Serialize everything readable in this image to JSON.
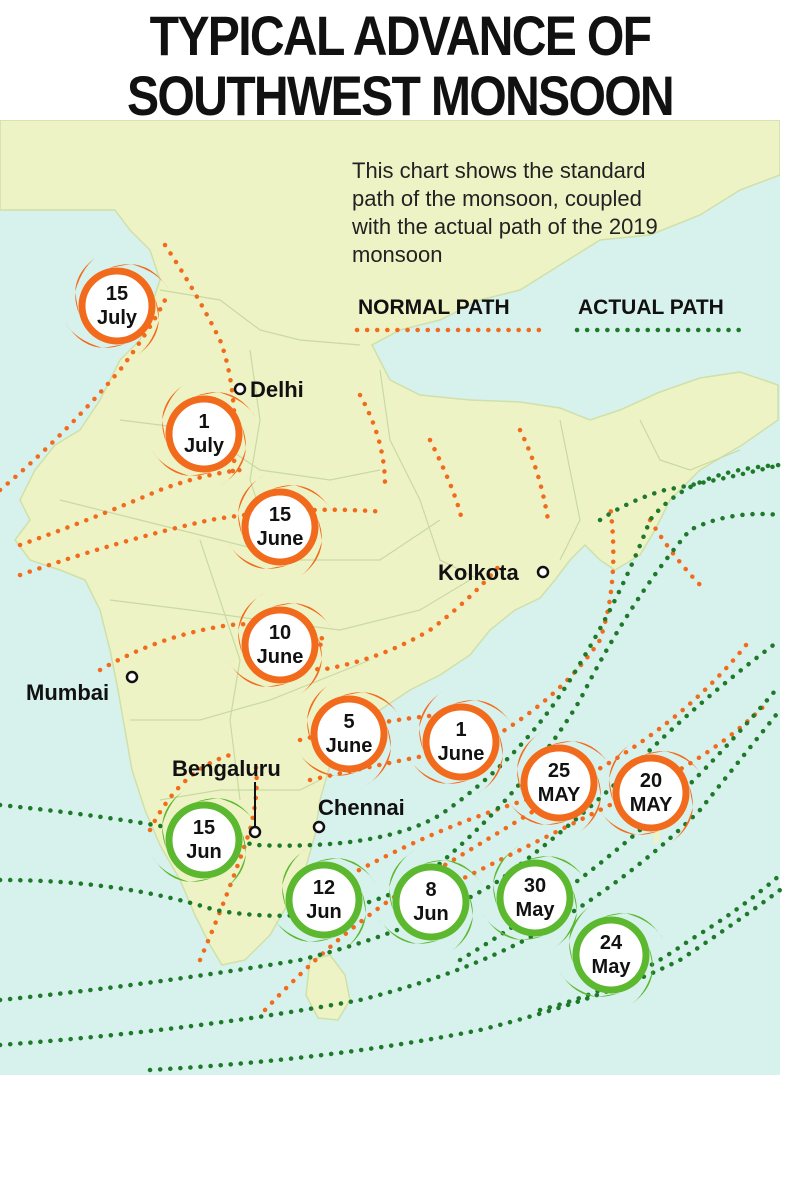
{
  "title": {
    "line1": "TYPICAL ADVANCE OF",
    "line2": "SOUTHWEST MONSOON"
  },
  "description": {
    "line1": "This chart shows the standard",
    "line2": "path of the monsoon, coupled",
    "line3": "with the actual path of the 2019",
    "line4": "monsoon"
  },
  "legend": {
    "normal": {
      "label": "NORMAL PATH",
      "color": "#f26b1d"
    },
    "actual": {
      "label": "ACTUAL PATH",
      "color": "#1e7a2a"
    }
  },
  "cities": {
    "delhi": "Delhi",
    "kolkota": "Kolkota",
    "mumbai": "Mumbai",
    "bengaluru": "Bengaluru",
    "chennai": "Chennai"
  },
  "normal_markers": [
    {
      "day": "15",
      "month": "July"
    },
    {
      "day": "1",
      "month": "July"
    },
    {
      "day": "15",
      "month": "June"
    },
    {
      "day": "10",
      "month": "June"
    },
    {
      "day": "5",
      "month": "June"
    },
    {
      "day": "1",
      "month": "June"
    },
    {
      "day": "25",
      "month": "MAY"
    },
    {
      "day": "20",
      "month": "MAY"
    }
  ],
  "actual_markers": [
    {
      "day": "15",
      "month": "Jun"
    },
    {
      "day": "12",
      "month": "Jun"
    },
    {
      "day": "8",
      "month": "Jun"
    },
    {
      "day": "30",
      "month": "May"
    },
    {
      "day": "24",
      "month": "May"
    }
  ],
  "colors": {
    "sea": "#d7f2ec",
    "land": "#eef3c6",
    "normal_swirl": "#f26b1d",
    "actual_swirl": "#5cb82e"
  }
}
